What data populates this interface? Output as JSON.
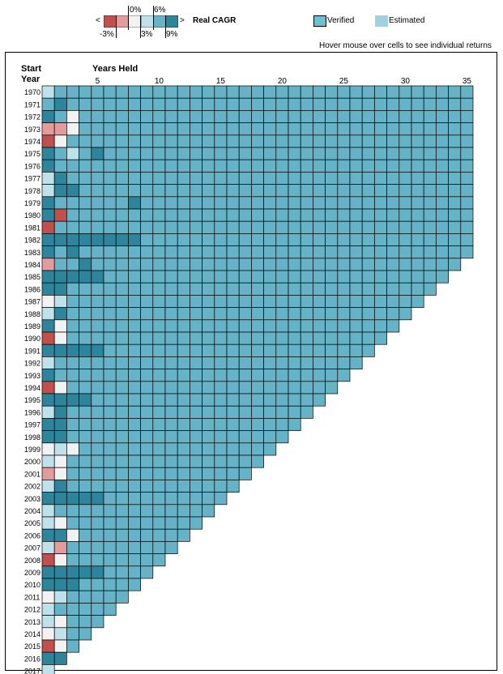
{
  "legend": {
    "title": "Real CAGR",
    "less_than": "<",
    "greater_than": ">",
    "top_ticks": [
      "0%",
      "6%"
    ],
    "bottom_ticks": [
      "-3%",
      "3%",
      "9%"
    ],
    "scale_colors": [
      "#c0504d",
      "#e39b9b",
      "#f2f2f2",
      "#bfe1ea",
      "#66b3c8",
      "#2e849a"
    ],
    "verified_label": "Verified",
    "estimated_label": "Estimated",
    "verified_color": "#6fbfd2",
    "estimated_color": "#9fd2de"
  },
  "hover_hint": "Hover mouse over cells to see individual returns",
  "chart": {
    "start_label_line1": "Start",
    "start_label_line2": "Year",
    "years_held_label": "Years Held",
    "x_ticks": [
      "5",
      "10",
      "15",
      "20",
      "25",
      "30",
      "35"
    ]
  },
  "chart_data": {
    "type": "heatmap",
    "title": "Real CAGR",
    "xlabel": "Years Held",
    "ylabel": "Start Year",
    "start_years": [
      1970,
      1971,
      1972,
      1973,
      1974,
      1975,
      1976,
      1977,
      1978,
      1979,
      1980,
      1981,
      1982,
      1983,
      1984,
      1985,
      1986,
      1987,
      1988,
      1989,
      1990,
      1991,
      1992,
      1993,
      1994,
      1995,
      1996,
      1997,
      1998,
      1999,
      2000,
      2001,
      2002,
      2003,
      2004,
      2005,
      2006,
      2007,
      2008,
      2009,
      2010,
      2011,
      2012,
      2013,
      2014,
      2015,
      2016,
      2017
    ],
    "years_held_max": 35,
    "end_year": 2017,
    "color_scale_breaks": [
      -3,
      0,
      3,
      6,
      9
    ],
    "special_cells": {
      "1970": {
        "1": "light"
      },
      "1971": {
        "2": "dark"
      },
      "1972": {
        "1": "dark",
        "3": "pale"
      },
      "1973": {
        "1": "pink",
        "2": "pink",
        "3": "pale"
      },
      "1974": {
        "1": "red",
        "2": "pale"
      },
      "1975": {
        "1": "dark",
        "3": "light",
        "5": "dark"
      },
      "1976": {
        "1": "dark"
      },
      "1977": {
        "1": "light",
        "2": "dark"
      },
      "1978": {
        "1": "light",
        "2": "dark",
        "3": "dark"
      },
      "1979": {
        "1": "dark",
        "8": "dark"
      },
      "1980": {
        "1": "dark",
        "2": "red"
      },
      "1981": {
        "1": "red"
      },
      "1982": {
        "1": "dark",
        "2": "dark",
        "3": "dark",
        "4": "dark",
        "5": "dark",
        "6": "dark",
        "7": "dark",
        "8": "dark"
      },
      "1983": {
        "1": "dark",
        "3": "dark"
      },
      "1984": {
        "1": "pink",
        "4": "dark"
      },
      "1985": {
        "1": "dark",
        "2": "dark",
        "3": "dark",
        "4": "dark",
        "5": "dark"
      },
      "1986": {
        "1": "dark",
        "2": "dark"
      },
      "1987": {
        "1": "pale",
        "2": "light"
      },
      "1988": {
        "1": "light",
        "2": "dark"
      },
      "1989": {
        "1": "dark",
        "2": "pale"
      },
      "1990": {
        "1": "red",
        "2": "pale"
      },
      "1991": {
        "1": "dark",
        "2": "dark",
        "3": "dark",
        "4": "dark",
        "5": "dark"
      },
      "1992": {
        "1": "light"
      },
      "1993": {
        "1": "dark"
      },
      "1994": {
        "1": "red",
        "2": "pale"
      },
      "1995": {
        "1": "dark",
        "2": "dark",
        "3": "dark",
        "4": "dark"
      },
      "1996": {
        "1": "light",
        "2": "dark"
      },
      "1997": {
        "1": "dark",
        "2": "dark"
      },
      "1998": {
        "1": "dark",
        "2": "dark"
      },
      "1999": {
        "1": "pale",
        "2": "light",
        "3": "pale"
      },
      "2000": {
        "1": "light",
        "2": "pale"
      },
      "2001": {
        "1": "pink",
        "2": "pale"
      },
      "2002": {
        "1": "light",
        "2": "dark"
      },
      "2003": {
        "1": "dark",
        "2": "dark",
        "3": "dark",
        "4": "dark",
        "5": "dark"
      },
      "2004": {
        "1": "light"
      },
      "2005": {
        "1": "light",
        "2": "pale"
      },
      "2006": {
        "1": "dark",
        "2": "dark",
        "3": "pale"
      },
      "2007": {
        "1": "light",
        "2": "pink"
      },
      "2008": {
        "1": "red",
        "2": "pale"
      },
      "2009": {
        "1": "dark",
        "2": "dark",
        "3": "dark",
        "4": "dark",
        "5": "dark"
      },
      "2010": {
        "1": "dark",
        "2": "dark",
        "3": "dark"
      },
      "2011": {
        "1": "pale",
        "2": "light"
      },
      "2012": {
        "1": "light"
      },
      "2013": {
        "1": "light",
        "2": "pale"
      },
      "2014": {
        "1": "pale",
        "2": "light"
      },
      "2015": {
        "1": "red",
        "2": "pale"
      },
      "2016": {
        "1": "dark",
        "2": "dark"
      },
      "2017": {
        "1": "light"
      }
    },
    "default_cell": "mid",
    "cell_colors": {
      "red": "#c0504d",
      "pink": "#e39b9b",
      "pale": "#f2f2f2",
      "light": "#bfe1ea",
      "mid": "#66b3c8",
      "dark": "#2e849a"
    }
  }
}
